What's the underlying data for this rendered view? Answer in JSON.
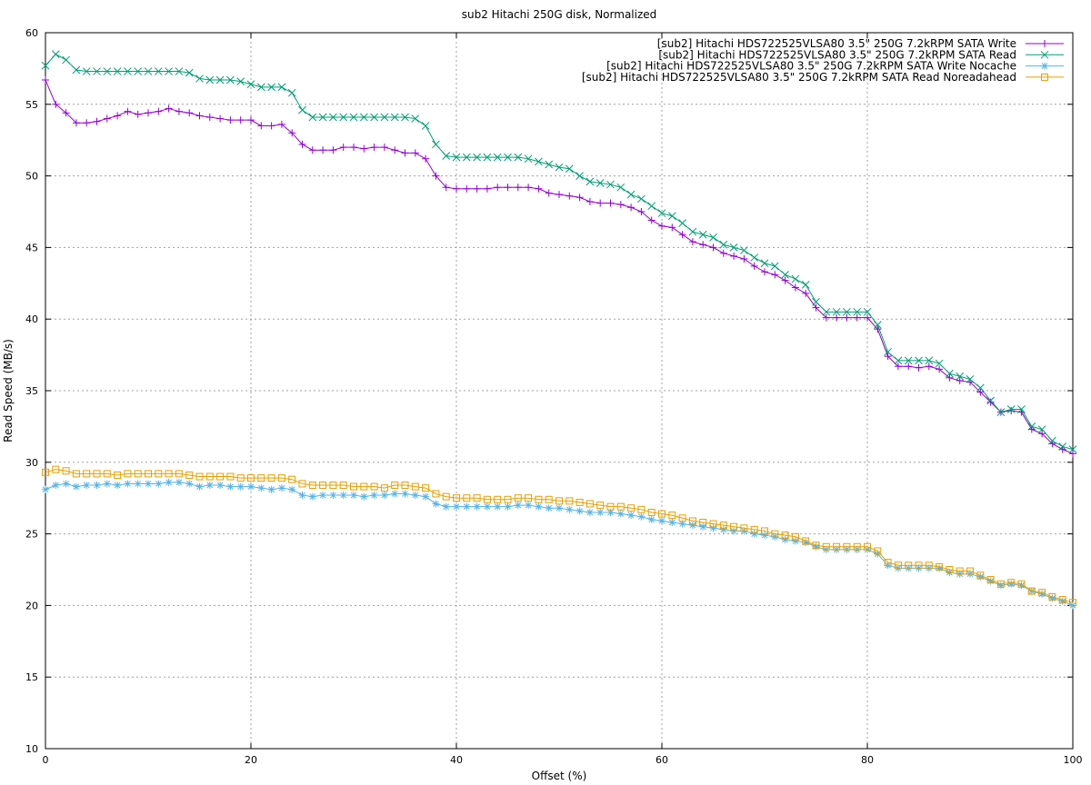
{
  "chart_data": {
    "type": "line",
    "title": "sub2 Hitachi 250G disk, Normalized",
    "xlabel": "Offset (%)",
    "ylabel": "Read Speed (MB/s)",
    "xlim": [
      0,
      100
    ],
    "ylim": [
      10,
      60
    ],
    "xticks": [
      0,
      20,
      40,
      60,
      80,
      100
    ],
    "yticks": [
      10,
      15,
      20,
      25,
      30,
      35,
      40,
      45,
      50,
      55,
      60
    ],
    "grid": true,
    "legend_position": "top-right",
    "x_step": 1,
    "series": [
      {
        "name": "[sub2] Hitachi HDS722525VLSA80 3.5\" 250G 7.2kRPM SATA Write",
        "color": "#9400d3",
        "marker": "plus",
        "values": [
          56.7,
          55.0,
          54.4,
          53.7,
          53.7,
          53.8,
          54.0,
          54.2,
          54.5,
          54.3,
          54.4,
          54.5,
          54.7,
          54.5,
          54.4,
          54.2,
          54.1,
          54.0,
          53.9,
          53.9,
          53.9,
          53.5,
          53.5,
          53.6,
          53.0,
          52.2,
          51.8,
          51.8,
          51.8,
          52.0,
          52.0,
          51.9,
          52.0,
          52.0,
          51.8,
          51.6,
          51.6,
          51.2,
          50.0,
          49.2,
          49.1,
          49.1,
          49.1,
          49.1,
          49.2,
          49.2,
          49.2,
          49.2,
          49.1,
          48.8,
          48.7,
          48.6,
          48.5,
          48.2,
          48.1,
          48.1,
          48.0,
          47.8,
          47.5,
          46.9,
          46.5,
          46.4,
          45.9,
          45.4,
          45.2,
          45.0,
          44.6,
          44.4,
          44.2,
          43.7,
          43.3,
          43.1,
          42.7,
          42.2,
          41.8,
          40.8,
          40.1,
          40.1,
          40.1,
          40.1,
          40.1,
          39.3,
          37.4,
          36.7,
          36.7,
          36.6,
          36.7,
          36.5,
          35.9,
          35.7,
          35.6,
          34.9,
          34.2,
          33.5,
          33.6,
          33.5,
          32.3,
          32.0,
          31.3,
          30.9,
          30.6
        ]
      },
      {
        "name": "[sub2] Hitachi HDS722525VLSA80 3.5\" 250G 7.2kRPM SATA Read",
        "color": "#009e73",
        "marker": "cross",
        "values": [
          57.7,
          58.5,
          58.1,
          57.4,
          57.3,
          57.3,
          57.3,
          57.3,
          57.3,
          57.3,
          57.3,
          57.3,
          57.3,
          57.3,
          57.2,
          56.8,
          56.7,
          56.7,
          56.7,
          56.6,
          56.4,
          56.2,
          56.2,
          56.2,
          55.8,
          54.6,
          54.1,
          54.1,
          54.1,
          54.1,
          54.1,
          54.1,
          54.1,
          54.1,
          54.1,
          54.1,
          54.0,
          53.5,
          52.2,
          51.4,
          51.3,
          51.3,
          51.3,
          51.3,
          51.3,
          51.3,
          51.3,
          51.2,
          51.0,
          50.8,
          50.6,
          50.5,
          50.0,
          49.6,
          49.5,
          49.4,
          49.2,
          48.7,
          48.4,
          47.9,
          47.4,
          47.2,
          46.7,
          46.1,
          45.9,
          45.7,
          45.2,
          45.0,
          44.8,
          44.3,
          43.9,
          43.7,
          43.1,
          42.8,
          42.4,
          41.2,
          40.5,
          40.5,
          40.5,
          40.5,
          40.5,
          39.6,
          37.7,
          37.1,
          37.1,
          37.1,
          37.1,
          36.9,
          36.2,
          36.0,
          35.8,
          35.2,
          34.3,
          33.5,
          33.7,
          33.7,
          32.5,
          32.3,
          31.5,
          31.1,
          30.9
        ]
      },
      {
        "name": "[sub2] Hitachi HDS722525VLSA80 3.5\" 250G 7.2kRPM SATA Write Nocache",
        "color": "#56b4e9",
        "marker": "star",
        "values": [
          28.1,
          28.4,
          28.5,
          28.3,
          28.4,
          28.4,
          28.5,
          28.4,
          28.5,
          28.5,
          28.5,
          28.5,
          28.6,
          28.6,
          28.5,
          28.3,
          28.4,
          28.4,
          28.3,
          28.3,
          28.3,
          28.2,
          28.1,
          28.2,
          28.1,
          27.7,
          27.6,
          27.7,
          27.7,
          27.7,
          27.7,
          27.6,
          27.7,
          27.7,
          27.8,
          27.8,
          27.7,
          27.6,
          27.1,
          26.9,
          26.9,
          26.9,
          26.9,
          26.9,
          26.9,
          26.9,
          27.0,
          27.0,
          26.9,
          26.8,
          26.8,
          26.7,
          26.6,
          26.5,
          26.5,
          26.5,
          26.4,
          26.3,
          26.2,
          26.0,
          25.9,
          25.8,
          25.7,
          25.6,
          25.5,
          25.4,
          25.3,
          25.2,
          25.2,
          25.0,
          24.9,
          24.8,
          24.6,
          24.5,
          24.4,
          24.1,
          23.9,
          23.9,
          23.9,
          23.9,
          23.9,
          23.6,
          22.8,
          22.6,
          22.6,
          22.6,
          22.6,
          22.6,
          22.3,
          22.2,
          22.2,
          22.0,
          21.7,
          21.4,
          21.5,
          21.4,
          21.0,
          20.8,
          20.5,
          20.3,
          20.0
        ]
      },
      {
        "name": "[sub2] Hitachi HDS722525VLSA80 3.5\" 250G 7.2kRPM SATA Read Noreadahead",
        "color": "#e69f00",
        "marker": "square",
        "values": [
          29.3,
          29.5,
          29.4,
          29.2,
          29.2,
          29.2,
          29.2,
          29.1,
          29.2,
          29.2,
          29.2,
          29.2,
          29.2,
          29.2,
          29.1,
          29.0,
          29.0,
          29.0,
          29.0,
          28.9,
          28.9,
          28.9,
          28.9,
          28.9,
          28.8,
          28.5,
          28.4,
          28.4,
          28.4,
          28.4,
          28.3,
          28.3,
          28.3,
          28.2,
          28.4,
          28.4,
          28.3,
          28.2,
          27.8,
          27.6,
          27.5,
          27.5,
          27.5,
          27.4,
          27.4,
          27.4,
          27.5,
          27.5,
          27.4,
          27.4,
          27.3,
          27.3,
          27.2,
          27.1,
          27.0,
          26.9,
          26.9,
          26.8,
          26.7,
          26.5,
          26.4,
          26.3,
          26.1,
          25.9,
          25.8,
          25.7,
          25.6,
          25.5,
          25.4,
          25.3,
          25.2,
          25.0,
          24.9,
          24.8,
          24.5,
          24.2,
          24.1,
          24.1,
          24.1,
          24.1,
          24.1,
          23.8,
          23.0,
          22.8,
          22.8,
          22.8,
          22.8,
          22.7,
          22.5,
          22.4,
          22.4,
          22.1,
          21.8,
          21.5,
          21.6,
          21.5,
          21.0,
          20.9,
          20.6,
          20.4,
          20.2
        ]
      }
    ]
  }
}
